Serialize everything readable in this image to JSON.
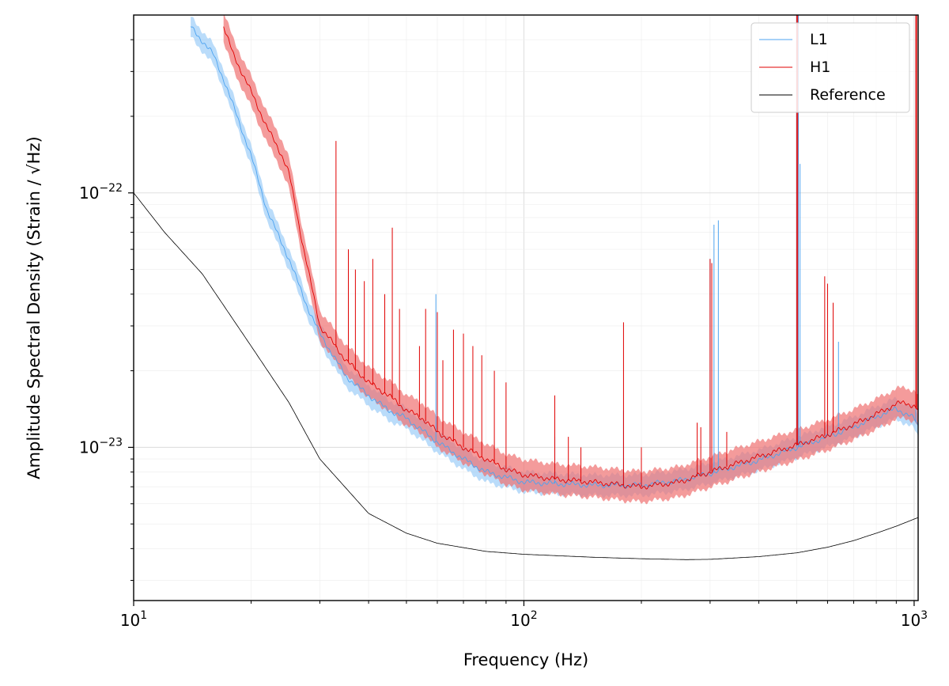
{
  "chart_data": {
    "type": "line",
    "xscale": "log",
    "yscale": "log",
    "xlim": [
      10,
      1024
    ],
    "ylim": [
      2.5e-24,
      5e-22
    ],
    "xlabel": "Frequency (Hz)",
    "ylabel": "Amplitude Spectral Density (Strain / √Hz)",
    "x_ticks": [
      {
        "value": 10,
        "base": "10",
        "exp": "1"
      },
      {
        "value": 100,
        "base": "10",
        "exp": "2"
      },
      {
        "value": 1000,
        "base": "10",
        "exp": "3"
      }
    ],
    "y_ticks": [
      {
        "value": 1e-23,
        "base": "10",
        "exp": "−23"
      },
      {
        "value": 1e-22,
        "base": "10",
        "exp": "−22"
      }
    ],
    "grid": true,
    "legend_position": "top-right",
    "series": [
      {
        "name": "L1",
        "color": "#4da3f0",
        "band_color": "#8cc4f7",
        "band_width_dex": 0.04,
        "x": [
          14,
          16,
          17,
          18,
          20,
          22,
          25,
          28,
          30,
          35,
          40,
          45,
          50,
          60,
          70,
          80,
          100,
          120,
          150,
          200,
          250,
          300,
          400,
          500,
          600,
          700,
          800,
          900,
          1000,
          1024
        ],
        "y": [
          4.5e-22,
          3.5e-22,
          2.8e-22,
          2.2e-22,
          1.4e-22,
          8.5e-23,
          5.5e-23,
          3.5e-23,
          2.8e-23,
          1.9e-23,
          1.6e-23,
          1.4e-23,
          1.3e-23,
          1.05e-23,
          9e-24,
          8e-24,
          7.3e-24,
          7.2e-24,
          7.1e-24,
          7.1e-24,
          7.4e-24,
          7.9e-24,
          8.9e-24,
          1e-23,
          1.1e-23,
          1.2e-23,
          1.32e-23,
          1.42e-23,
          1.3e-23,
          1.2e-23
        ],
        "lines": [
          {
            "f": 59.5,
            "y": 4e-23
          },
          {
            "f": 120,
            "y": 1.1e-23
          },
          {
            "f": 180,
            "y": 1.4e-23
          },
          {
            "f": 300,
            "y": 5.5e-23
          },
          {
            "f": 307,
            "y": 7.5e-23
          },
          {
            "f": 315,
            "y": 7.8e-23
          },
          {
            "f": 500,
            "y": 6e-22
          },
          {
            "f": 505,
            "y": 6e-22
          },
          {
            "f": 510,
            "y": 1.3e-22
          },
          {
            "f": 640,
            "y": 2.6e-23
          },
          {
            "f": 1010,
            "y": 6e-22
          }
        ]
      },
      {
        "name": "H1",
        "color": "#e00000",
        "band_color": "#f07070",
        "band_width_dex": 0.06,
        "x": [
          17,
          18,
          20,
          22,
          24,
          25,
          27,
          30,
          35,
          40,
          45,
          50,
          55,
          60,
          70,
          80,
          90,
          100,
          120,
          150,
          180,
          200,
          250,
          300,
          400,
          500,
          600,
          700,
          800,
          900,
          950,
          1000,
          1024
        ],
        "y": [
          4.5e-22,
          3.5e-22,
          2.5e-22,
          1.8e-22,
          1.4e-22,
          1.2e-22,
          6.5e-23,
          3e-23,
          2.2e-23,
          1.8e-23,
          1.6e-23,
          1.4e-23,
          1.3e-23,
          1.15e-23,
          1e-23,
          9e-24,
          8.2e-24,
          7.8e-24,
          7.5e-24,
          7.3e-24,
          7.1e-24,
          7e-24,
          7.3e-24,
          8e-24,
          9.2e-24,
          1.02e-23,
          1.12e-23,
          1.23e-23,
          1.35e-23,
          1.48e-23,
          1.5e-23,
          1.45e-23,
          1.4e-23
        ],
        "lines": [
          {
            "f": 33,
            "y": 1.6e-22
          },
          {
            "f": 35.5,
            "y": 6e-23
          },
          {
            "f": 37,
            "y": 5e-23
          },
          {
            "f": 39,
            "y": 4.5e-23
          },
          {
            "f": 41,
            "y": 5.5e-23
          },
          {
            "f": 44,
            "y": 4e-23
          },
          {
            "f": 46,
            "y": 7.3e-23
          },
          {
            "f": 48,
            "y": 3.5e-23
          },
          {
            "f": 54,
            "y": 2.5e-23
          },
          {
            "f": 56,
            "y": 3.5e-23
          },
          {
            "f": 60,
            "y": 3.4e-23
          },
          {
            "f": 62,
            "y": 2.2e-23
          },
          {
            "f": 66,
            "y": 2.9e-23
          },
          {
            "f": 70,
            "y": 2.8e-23
          },
          {
            "f": 74,
            "y": 2.5e-23
          },
          {
            "f": 78,
            "y": 2.3e-23
          },
          {
            "f": 84,
            "y": 2e-23
          },
          {
            "f": 90,
            "y": 1.8e-23
          },
          {
            "f": 120,
            "y": 1.6e-23
          },
          {
            "f": 130,
            "y": 1.1e-23
          },
          {
            "f": 140,
            "y": 1e-23
          },
          {
            "f": 180,
            "y": 3.1e-23
          },
          {
            "f": 200,
            "y": 1e-23
          },
          {
            "f": 278,
            "y": 1.25e-23
          },
          {
            "f": 284,
            "y": 1.2e-23
          },
          {
            "f": 300,
            "y": 5.5e-23
          },
          {
            "f": 303,
            "y": 5.3e-23
          },
          {
            "f": 331,
            "y": 1.15e-23
          },
          {
            "f": 500,
            "y": 6e-22
          },
          {
            "f": 503,
            "y": 6e-22
          },
          {
            "f": 590,
            "y": 4.7e-23
          },
          {
            "f": 600,
            "y": 4.4e-23
          },
          {
            "f": 620,
            "y": 3.7e-23
          },
          {
            "f": 1010,
            "y": 6e-22
          },
          {
            "f": 1015,
            "y": 5e-22
          }
        ]
      },
      {
        "name": "Reference",
        "color": "#000000",
        "x": [
          10,
          12,
          15,
          20,
          25,
          30,
          40,
          50,
          60,
          80,
          100,
          150,
          200,
          260,
          300,
          400,
          500,
          600,
          700,
          800,
          900,
          1024
        ],
        "y": [
          1e-22,
          7e-23,
          4.8e-23,
          2.5e-23,
          1.5e-23,
          9e-24,
          5.5e-24,
          4.6e-24,
          4.2e-24,
          3.9e-24,
          3.8e-24,
          3.7e-24,
          3.65e-24,
          3.62e-24,
          3.63e-24,
          3.72e-24,
          3.85e-24,
          4.05e-24,
          4.3e-24,
          4.6e-24,
          4.9e-24,
          5.3e-24
        ]
      }
    ]
  }
}
